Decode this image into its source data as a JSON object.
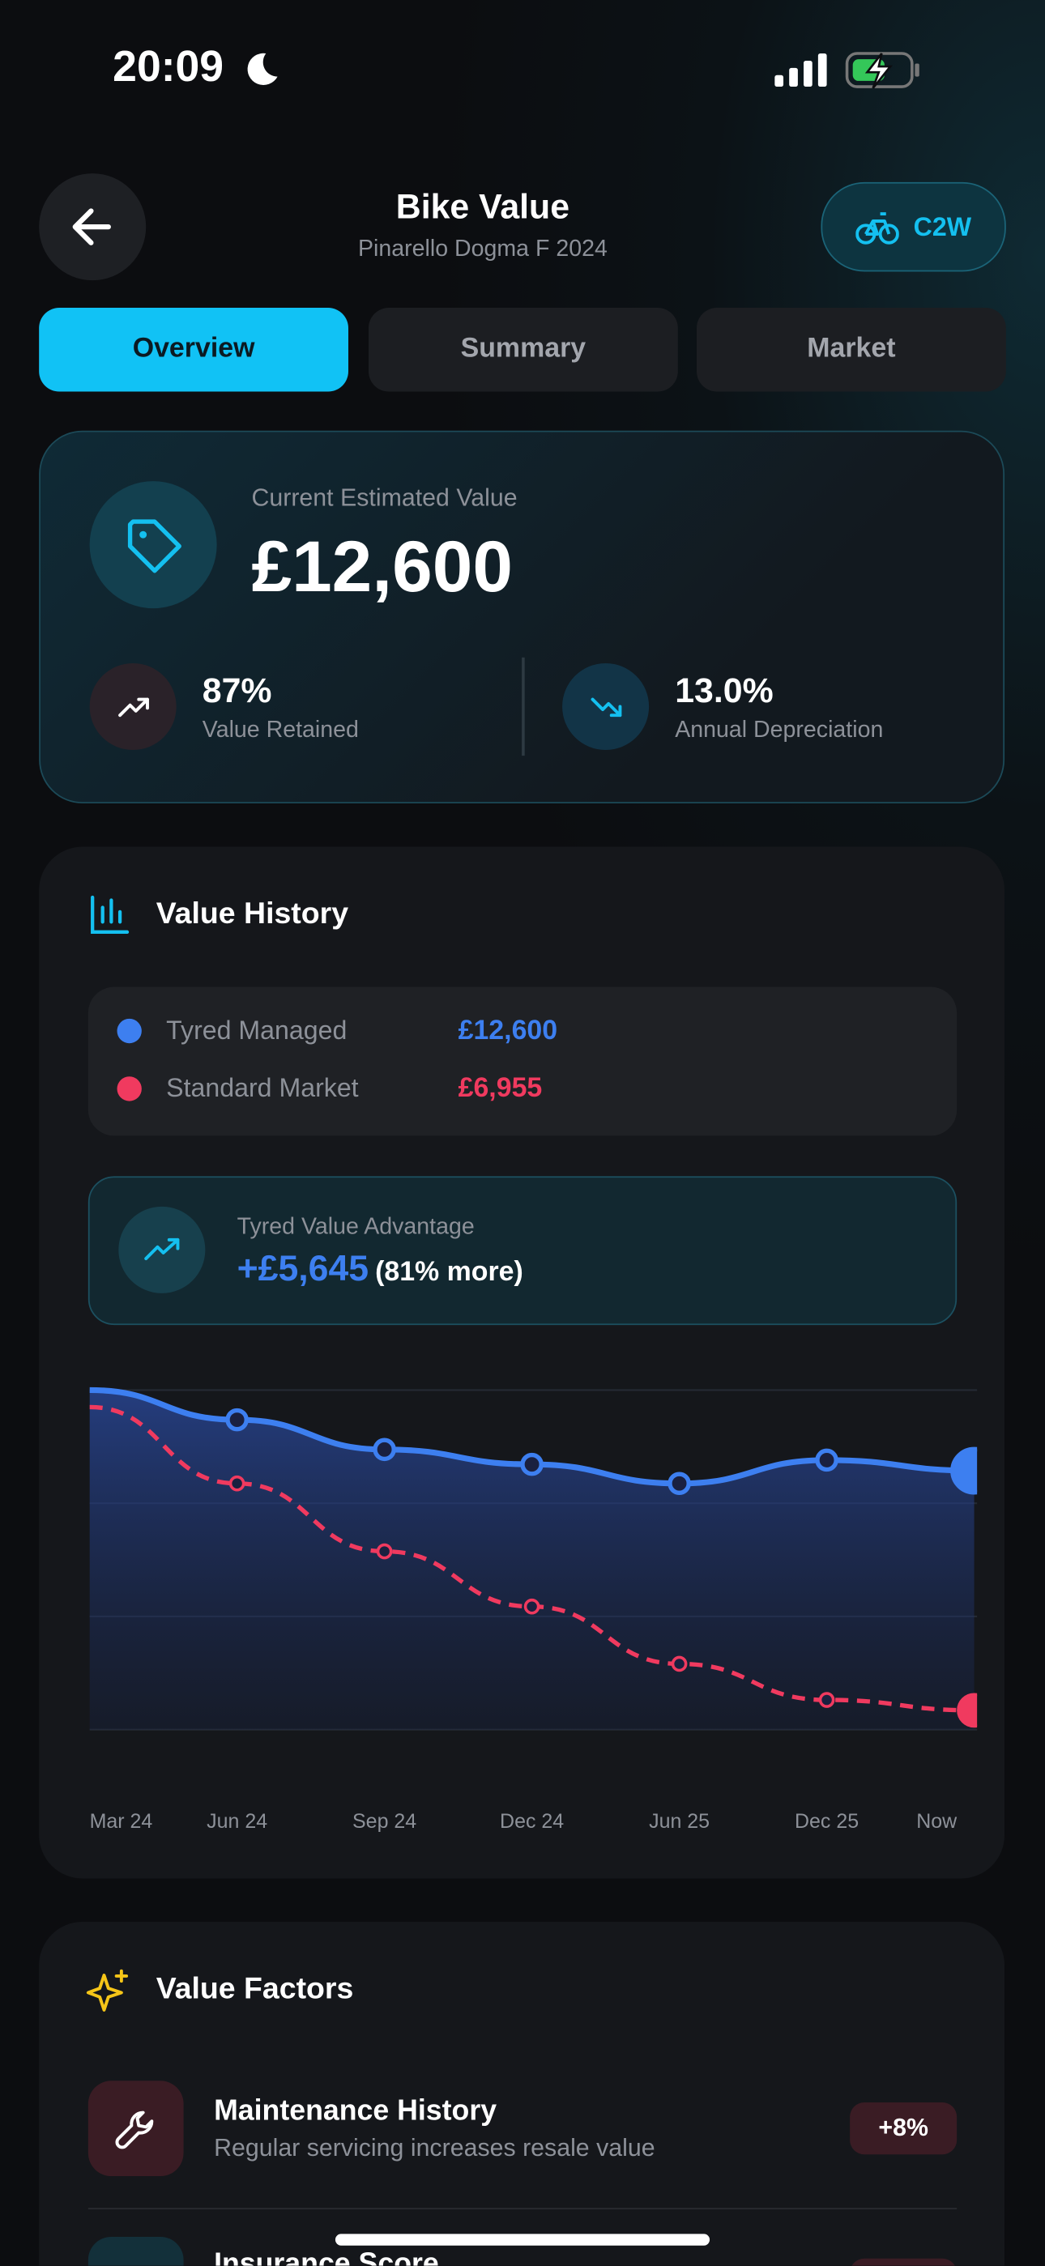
{
  "status_bar": {
    "time": "20:09"
  },
  "header": {
    "title": "Bike Value",
    "subtitle": "Pinarello Dogma F 2024",
    "badge": "C2W"
  },
  "tabs": [
    "Overview",
    "Summary",
    "Market"
  ],
  "value_card": {
    "label": "Current Estimated Value",
    "value": "£12,600",
    "stats": [
      {
        "value": "87%",
        "label": "Value Retained"
      },
      {
        "value": "13.0%",
        "label": "Annual Depreciation"
      }
    ]
  },
  "history": {
    "title": "Value History",
    "advantage": {
      "label": "Tyred Value Advantage",
      "value": "+£5,645",
      "note": "(81% more)"
    }
  },
  "chart_data": {
    "type": "line",
    "categories": [
      "Mar 24",
      "Jun 24",
      "Sep 24",
      "Dec 24",
      "Jun 25",
      "Dec 25",
      "Now"
    ],
    "series": [
      {
        "name": "Tyred Managed",
        "color": "#3d7ff0",
        "values": [
          14500,
          13800,
          13100,
          12750,
          12300,
          12850,
          12600
        ],
        "value_labels": [
          null,
          null,
          null,
          null,
          null,
          null,
          "£12,600"
        ]
      },
      {
        "name": "Standard Market",
        "color": "#f03a5f",
        "values": [
          14100,
          12300,
          10700,
          9400,
          8050,
          7200,
          6955
        ],
        "value_labels": [
          null,
          null,
          null,
          null,
          null,
          null,
          "£6,955"
        ]
      }
    ],
    "ylim": [
      6500,
      14500
    ],
    "grid": true
  },
  "factors": {
    "title": "Value Factors",
    "items": [
      {
        "title": "Maintenance History",
        "description": "Regular servicing increases resale value",
        "impact": "+8%"
      },
      {
        "title": "Insurance Score"
      }
    ]
  }
}
